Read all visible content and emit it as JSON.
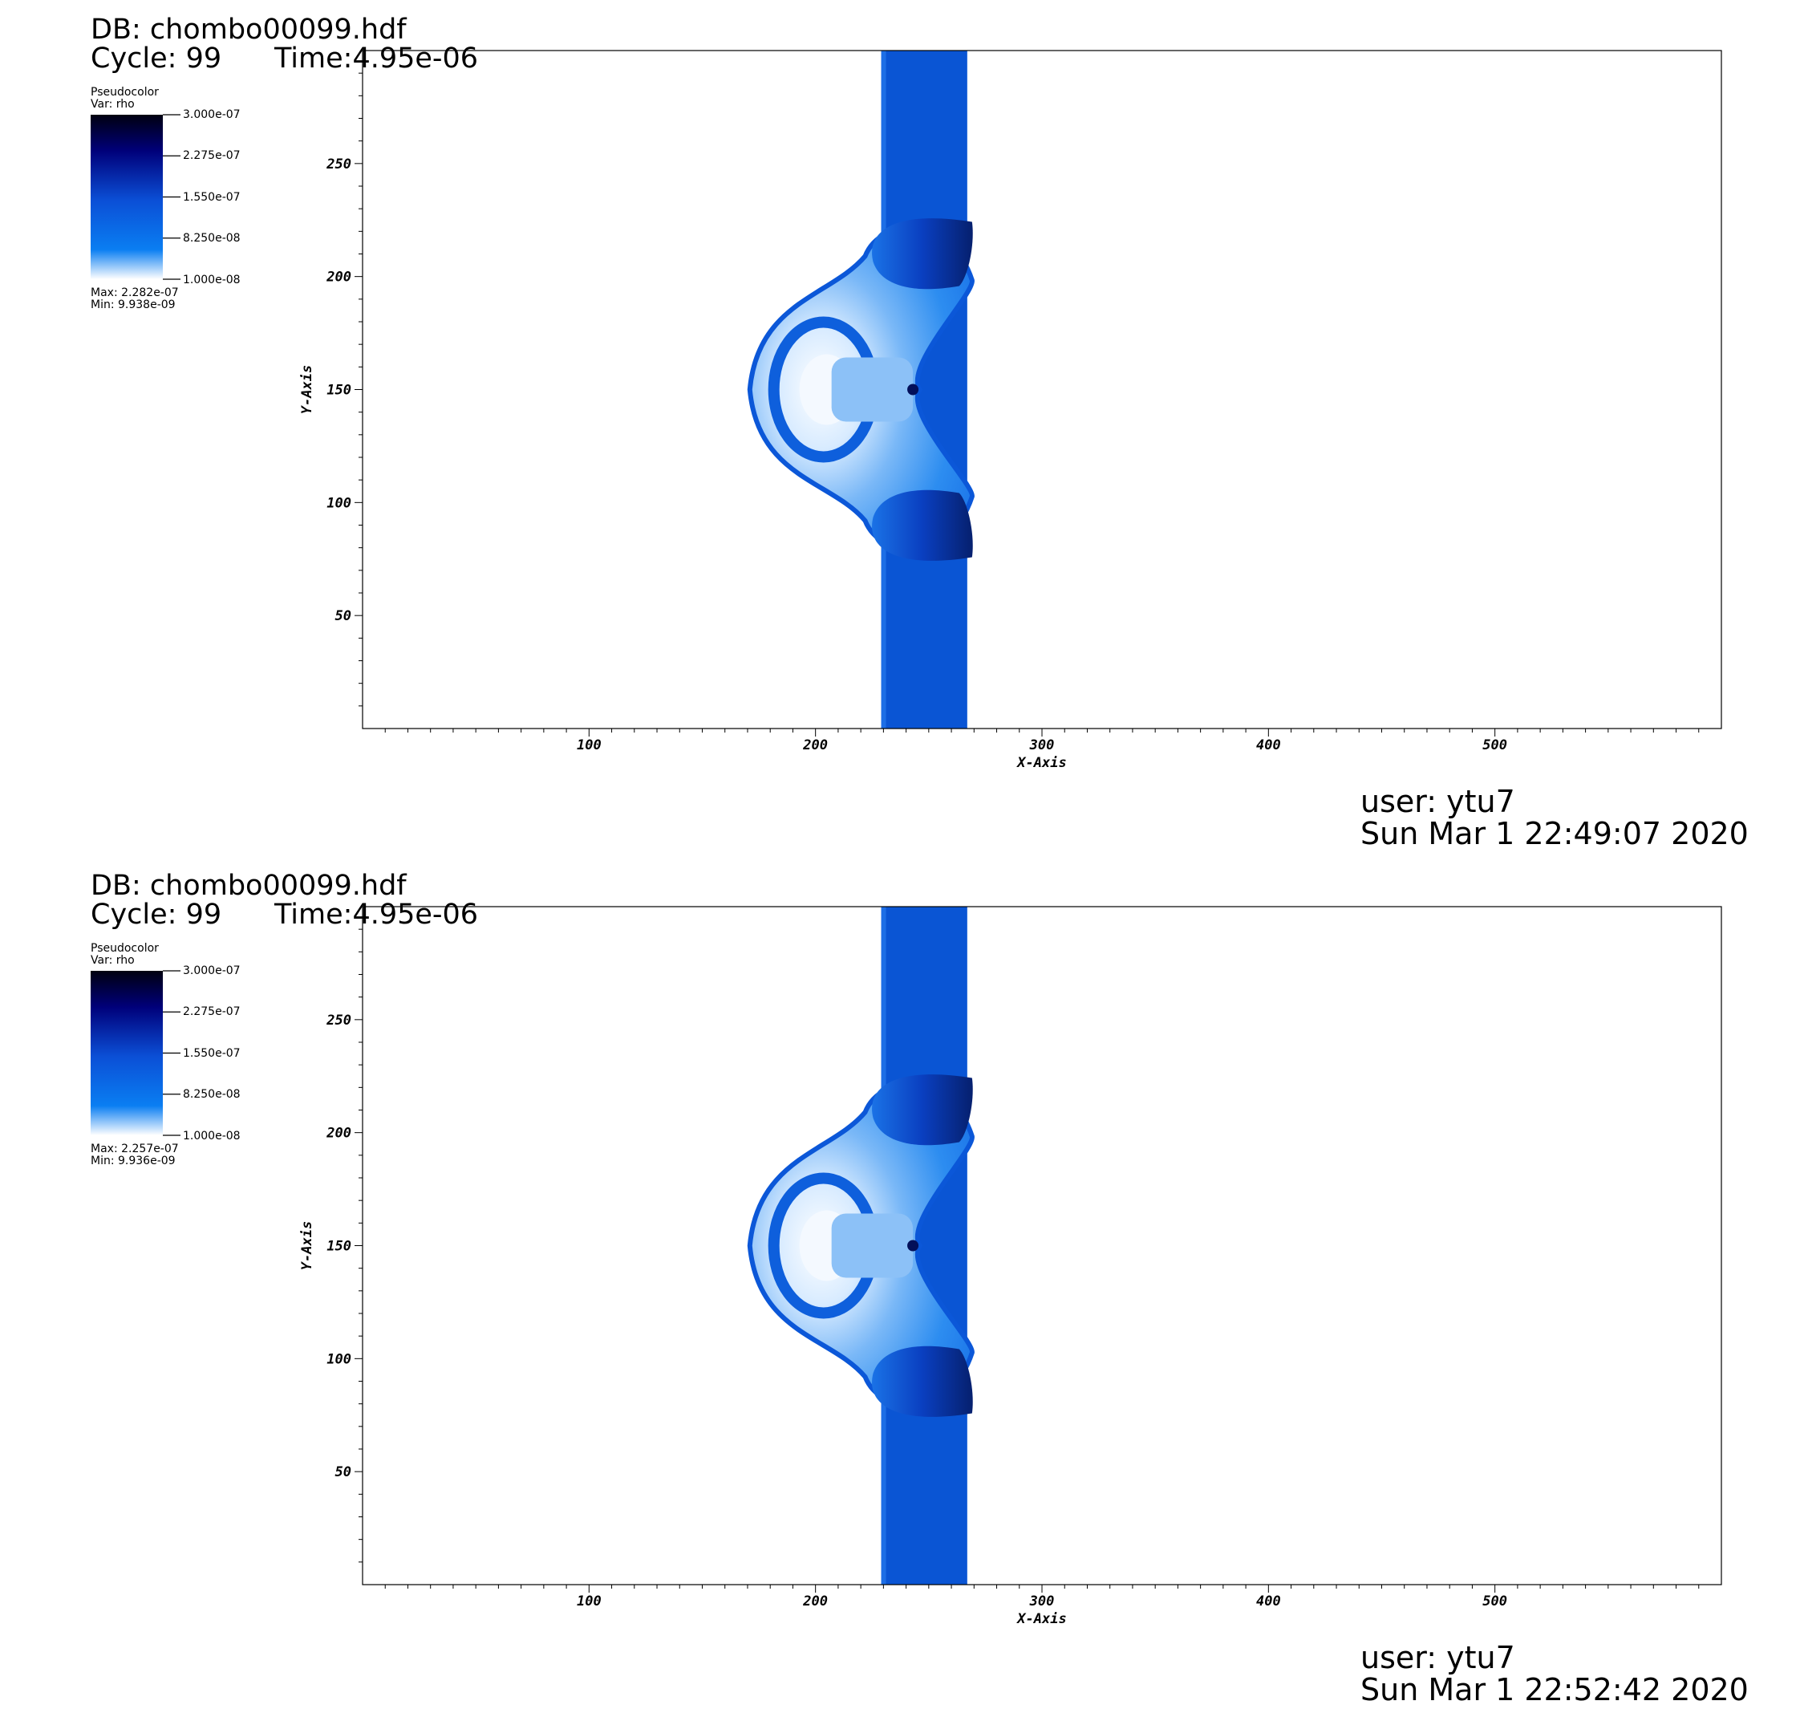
{
  "panels": [
    {
      "db_label": "DB: chombo00099.hdf",
      "cycle_label": "Cycle: 99",
      "time_label": "Time:4.95e-06",
      "legend": {
        "plot_type": "Pseudocolor",
        "var_label": "Var: rho",
        "ticks": [
          "3.000e-07",
          "2.275e-07",
          "1.550e-07",
          "8.250e-08",
          "1.000e-08"
        ],
        "max_label": "Max:  2.282e-07",
        "min_label": "Min:  9.938e-09"
      },
      "footer": {
        "user": "user: ytu7",
        "date": "Sun Mar  1 22:49:07 2020"
      }
    },
    {
      "db_label": "DB: chombo00099.hdf",
      "cycle_label": "Cycle: 99",
      "time_label": "Time:4.95e-06",
      "legend": {
        "plot_type": "Pseudocolor",
        "var_label": "Var: rho",
        "ticks": [
          "3.000e-07",
          "2.275e-07",
          "1.550e-07",
          "8.250e-08",
          "1.000e-08"
        ],
        "max_label": "Max:  2.257e-07",
        "min_label": "Min:  9.936e-09"
      },
      "footer": {
        "user": "user: ytu7",
        "date": "Sun Mar  1 22:52:42 2020"
      }
    }
  ],
  "chart_data": [
    {
      "type": "heatmap",
      "variable": "rho",
      "xlabel": "X-Axis",
      "ylabel": "Y-Axis",
      "xlim": [
        0,
        600
      ],
      "ylim": [
        0,
        300
      ],
      "xticks": [
        100,
        200,
        300,
        400,
        500
      ],
      "yticks": [
        50,
        100,
        150,
        200,
        250
      ],
      "colorbar_range": [
        1e-08,
        3e-07
      ],
      "colors": [
        "#ffffff",
        "#0a7ef2",
        "#0b4fd6",
        "#00007a",
        "#000010"
      ],
      "features": {
        "slab_x": [
          229,
          267
        ],
        "slab_rho": 1.3e-07,
        "bubble_center": [
          200,
          150
        ],
        "bubble_x_extent": [
          171,
          268
        ],
        "bubble_y_extent": [
          60,
          241
        ],
        "vortex_y": [
          210,
          90
        ]
      }
    },
    {
      "type": "heatmap",
      "variable": "rho",
      "xlabel": "X-Axis",
      "ylabel": "Y-Axis",
      "xlim": [
        0,
        600
      ],
      "ylim": [
        0,
        300
      ],
      "xticks": [
        100,
        200,
        300,
        400,
        500
      ],
      "yticks": [
        50,
        100,
        150,
        200,
        250
      ],
      "colorbar_range": [
        1e-08,
        3e-07
      ],
      "colors": [
        "#ffffff",
        "#0a7ef2",
        "#0b4fd6",
        "#00007a",
        "#000010"
      ],
      "features": {
        "slab_x": [
          229,
          267
        ],
        "slab_rho": 1.3e-07,
        "bubble_center": [
          200,
          150
        ],
        "bubble_x_extent": [
          171,
          268
        ],
        "bubble_y_extent": [
          60,
          241
        ],
        "vortex_y": [
          210,
          90
        ]
      }
    }
  ]
}
